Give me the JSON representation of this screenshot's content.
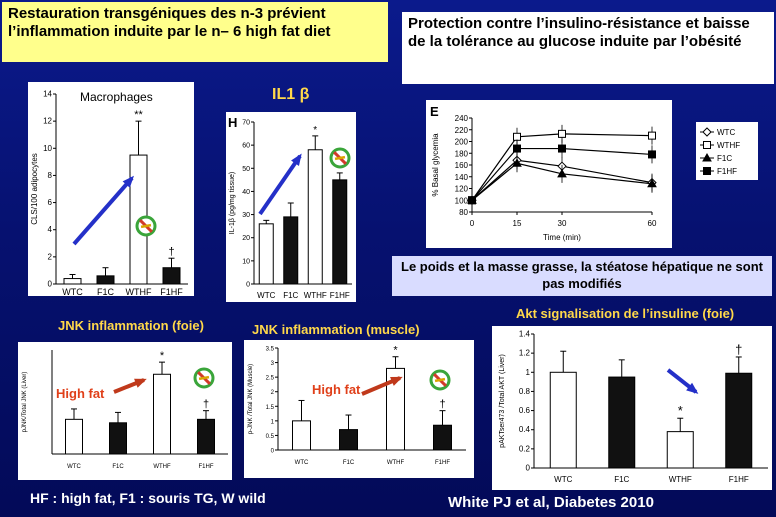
{
  "title_left": "Restauration transgéniques des n-3 prévient l’inflammation induite par le n– 6 high fat diet",
  "title_right": "Protection contre l’insulino-résistance et baisse de la tolérance au glucose induite par l’obésité",
  "label_il1b": "IL1 β",
  "label_jnk_liver": "JNK inflammation (foie)",
  "label_jnk_muscle": "JNK inflammation (muscle)",
  "label_akt": "Akt signalisation de l’insuline (foie)",
  "note_weight": "Le poids et la masse grasse, la stéatose hépatique ne sont pas modifiés",
  "footer_left": "HF : high fat, F1 : souris TG, W wild",
  "footer_right": "White PJ et al, Diabetes 2010",
  "colors": {
    "accent_yellow": "#ffd84a",
    "arrow_blue": "#2430c8",
    "arrow_red": "#c0391b",
    "high_fat_text": "#e0401a",
    "no_sign_green": "#3aa53a",
    "no_sign_red": "#d23a2a"
  },
  "chart_data": [
    {
      "type": "bar",
      "panel_letter": "",
      "title": "Macrophages",
      "ylabel": "CLS/100 adipocytes",
      "categories": [
        "WTC",
        "F1C",
        "WTHF",
        "F1HF"
      ],
      "values": [
        0.4,
        0.6,
        9.5,
        1.2
      ],
      "errors": [
        0.3,
        0.6,
        2.5,
        0.7
      ],
      "fills": [
        "white",
        "black",
        "white",
        "black"
      ],
      "ylim": [
        0,
        14
      ],
      "yticks": [
        "0",
        "2",
        "4",
        "6",
        "8",
        "10",
        "12",
        "14"
      ],
      "significance": [
        "",
        "",
        "**",
        "†"
      ],
      "icons": [
        "blue-arrow-icon",
        "no-sign-icon"
      ]
    },
    {
      "type": "bar",
      "panel_letter": "H",
      "title": "",
      "ylabel": "IL-1β (pg/mg tissue)",
      "categories": [
        "WTC",
        "F1C",
        "WTHF",
        "F1HF"
      ],
      "values": [
        26,
        29,
        58,
        45
      ],
      "errors": [
        1.5,
        6,
        6,
        3
      ],
      "fills": [
        "white",
        "black",
        "white",
        "black"
      ],
      "ylim": [
        0,
        70
      ],
      "yticks": [
        "0",
        "10",
        "20",
        "30",
        "40",
        "50",
        "60",
        "70"
      ],
      "significance": [
        "",
        "",
        "*",
        ""
      ],
      "icons": [
        "blue-arrow-icon",
        "no-sign-icon"
      ]
    },
    {
      "type": "line",
      "panel_letter": "E",
      "title": "",
      "ylabel": "% Basal glycemia",
      "xlabel": "Time (min)",
      "x": [
        0,
        15,
        30,
        60
      ],
      "xticks": [
        "0",
        "15",
        "30",
        "60"
      ],
      "ylim": [
        80,
        240
      ],
      "yticks": [
        "80",
        "100",
        "120",
        "140",
        "160",
        "180",
        "200",
        "220",
        "240"
      ],
      "series": [
        {
          "name": "WTC",
          "values": [
            100,
            168,
            158,
            130
          ],
          "marker": "open-diamond"
        },
        {
          "name": "WTHF",
          "values": [
            100,
            208,
            213,
            210
          ],
          "marker": "open-square"
        },
        {
          "name": "F1C",
          "values": [
            100,
            163,
            145,
            128
          ],
          "marker": "triangle"
        },
        {
          "name": "F1HF",
          "values": [
            100,
            188,
            188,
            178
          ],
          "marker": "square"
        }
      ]
    },
    {
      "type": "bar",
      "panel_letter": "",
      "title": "",
      "ylabel": "pJNK/Total JNK (Liver)",
      "categories": [
        "WTC",
        "F1C",
        "WTHF",
        "F1HF"
      ],
      "values": [
        1.0,
        0.9,
        2.3,
        1.0
      ],
      "errors": [
        0.3,
        0.3,
        0.35,
        0.25
      ],
      "fills": [
        "white",
        "black",
        "white",
        "black"
      ],
      "ylim": [
        0,
        3
      ],
      "yticks": [],
      "significance": [
        "",
        "",
        "*",
        "†"
      ],
      "annotation": "High fat",
      "icons": [
        "red-arrow-icon",
        "no-sign-icon"
      ]
    },
    {
      "type": "bar",
      "panel_letter": "",
      "title": "",
      "ylabel": "p-JNK /Total JNK (Muscle)",
      "categories": [
        "WTC",
        "F1C",
        "WTHF",
        "F1HF"
      ],
      "values": [
        1.0,
        0.7,
        2.8,
        0.85
      ],
      "errors": [
        0.7,
        0.5,
        0.4,
        0.5
      ],
      "fills": [
        "white",
        "black",
        "white",
        "black"
      ],
      "ylim": [
        0,
        3.5
      ],
      "yticks": [
        "0",
        "0.5",
        "1",
        "1.5",
        "2",
        "2.5",
        "3",
        "3.5"
      ],
      "significance": [
        "",
        "",
        "*",
        "†"
      ],
      "annotation": "High fat",
      "icons": [
        "red-arrow-icon",
        "no-sign-icon"
      ]
    },
    {
      "type": "bar",
      "panel_letter": "",
      "title": "",
      "ylabel": "pAKTser473 /Total AKT (Liver)",
      "categories": [
        "WTC",
        "F1C",
        "WTHF",
        "F1HF"
      ],
      "values": [
        1.0,
        0.95,
        0.38,
        0.99
      ],
      "errors": [
        0.22,
        0.18,
        0.14,
        0.17
      ],
      "fills": [
        "white",
        "black",
        "white",
        "black"
      ],
      "ylim": [
        0,
        1.4
      ],
      "yticks": [
        "0",
        "0.2",
        "0.4",
        "0.6",
        "0.8",
        "1",
        "1.2",
        "1.4"
      ],
      "significance": [
        "",
        "",
        "*",
        "†"
      ],
      "icons": [
        "blue-arrow-icon"
      ]
    }
  ]
}
